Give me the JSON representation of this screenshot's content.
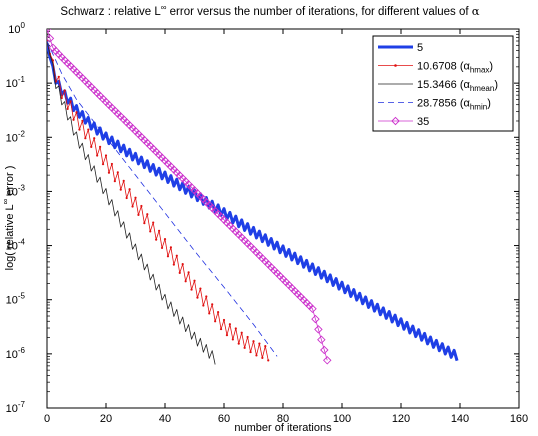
{
  "chart_data": {
    "type": "line",
    "title": {
      "main": "Schwarz : relative L",
      "sup": "∞",
      "rest": " error versus the number of iterations, for different values of ",
      "alpha": "α"
    },
    "xlabel": "number of iterations",
    "ylabel": {
      "pre": "log( relative L",
      "sup": "∞",
      "post": " error )"
    },
    "xlim": [
      0,
      160
    ],
    "ylim": [
      1e-07,
      1
    ],
    "yscale": "log",
    "grid": false,
    "legend_position": "top-right",
    "x_ticks": [
      "0",
      "20",
      "40",
      "60",
      "80",
      "100",
      "120",
      "140",
      "160"
    ],
    "y_ticks": [
      {
        "base": "10",
        "exp": "0"
      },
      {
        "base": "10",
        "exp": "-1"
      },
      {
        "base": "10",
        "exp": "-2"
      },
      {
        "base": "10",
        "exp": "-3"
      },
      {
        "base": "10",
        "exp": "-4"
      },
      {
        "base": "10",
        "exp": "-5"
      },
      {
        "base": "10",
        "exp": "-6"
      },
      {
        "base": "10",
        "exp": "-7"
      }
    ],
    "series": [
      {
        "name": "5",
        "label_parts": [
          "5"
        ],
        "color": "#1f3fe6",
        "style": "thick-solid",
        "x_end": 139,
        "points": [
          [
            0,
            0.55
          ],
          [
            1,
            0.3
          ],
          [
            2,
            0.17
          ],
          [
            3,
            0.12
          ],
          [
            4,
            0.09
          ],
          [
            6,
            0.06
          ],
          [
            10,
            0.032
          ],
          [
            15,
            0.017
          ],
          [
            20,
            0.01
          ],
          [
            25,
            0.0065
          ],
          [
            30,
            0.0042
          ],
          [
            40,
            0.0019
          ],
          [
            50,
            0.00088
          ],
          [
            60,
            0.0004
          ],
          [
            70,
            0.00018
          ],
          [
            80,
            8.2e-05
          ],
          [
            90,
            3.8e-05
          ],
          [
            100,
            1.75e-05
          ],
          [
            110,
            8e-06
          ],
          [
            120,
            3.7e-06
          ],
          [
            130,
            1.7e-06
          ],
          [
            139,
            9e-07
          ]
        ],
        "oscillation_decades": 0.08
      },
      {
        "name": "10.6708 (αhmax)",
        "label_parts": [
          "10.6708 (α",
          "hmax",
          ")"
        ],
        "color": "#e01010",
        "style": "thin-dotted-marker",
        "x_end": 75,
        "points": [
          [
            0,
            0.6
          ],
          [
            2,
            0.2
          ],
          [
            5,
            0.07
          ],
          [
            10,
            0.022
          ],
          [
            20,
            0.0035
          ],
          [
            30,
            0.00058
          ],
          [
            40,
            0.0001
          ],
          [
            50,
            1.7e-05
          ],
          [
            60,
            3.2e-06
          ],
          [
            70,
            1.3e-06
          ],
          [
            75,
            1e-06
          ]
        ],
        "oscillation_decades": 0.12
      },
      {
        "name": "15.3466 (αhmean)",
        "label_parts": [
          "15.3466 (α",
          "hmean",
          ")"
        ],
        "color": "#222222",
        "style": "thin-solid",
        "x_end": 57,
        "points": [
          [
            0,
            0.6
          ],
          [
            3,
            0.1
          ],
          [
            5,
            0.05
          ],
          [
            10,
            0.01
          ],
          [
            20,
            0.0009
          ],
          [
            30,
            8.5e-05
          ],
          [
            40,
            1e-05
          ],
          [
            50,
            2e-06
          ],
          [
            57,
            8e-07
          ]
        ],
        "oscillation_decades": 0.1
      },
      {
        "name": "28.7856 (αhmin)",
        "label_parts": [
          "28.7856 (α",
          "hmin",
          ")"
        ],
        "color": "#2030e0",
        "style": "dashed",
        "x_end": 78,
        "points": [
          [
            0,
            0.6
          ],
          [
            5,
            0.15
          ],
          [
            10,
            0.05
          ],
          [
            20,
            0.01
          ],
          [
            30,
            0.002
          ],
          [
            40,
            0.0004
          ],
          [
            50,
            8e-05
          ],
          [
            60,
            1.7e-05
          ],
          [
            70,
            3.5e-06
          ],
          [
            78,
            9e-07
          ]
        ],
        "oscillation_decades": 0
      },
      {
        "name": "35",
        "label_parts": [
          "35"
        ],
        "color": "#cc30cc",
        "style": "diamond-marker",
        "x_end": 95,
        "points": [
          [
            0,
            1
          ],
          [
            2,
            0.45
          ],
          [
            5,
            0.3
          ],
          [
            10,
            0.16
          ],
          [
            20,
            0.045
          ],
          [
            30,
            0.013
          ],
          [
            40,
            0.0037
          ],
          [
            50,
            0.00105
          ],
          [
            60,
            0.0003
          ],
          [
            70,
            8.5e-05
          ],
          [
            80,
            2.4e-05
          ],
          [
            90,
            6.8e-06
          ],
          [
            95,
            7.6e-07
          ]
        ],
        "oscillation_decades": 0
      }
    ]
  }
}
